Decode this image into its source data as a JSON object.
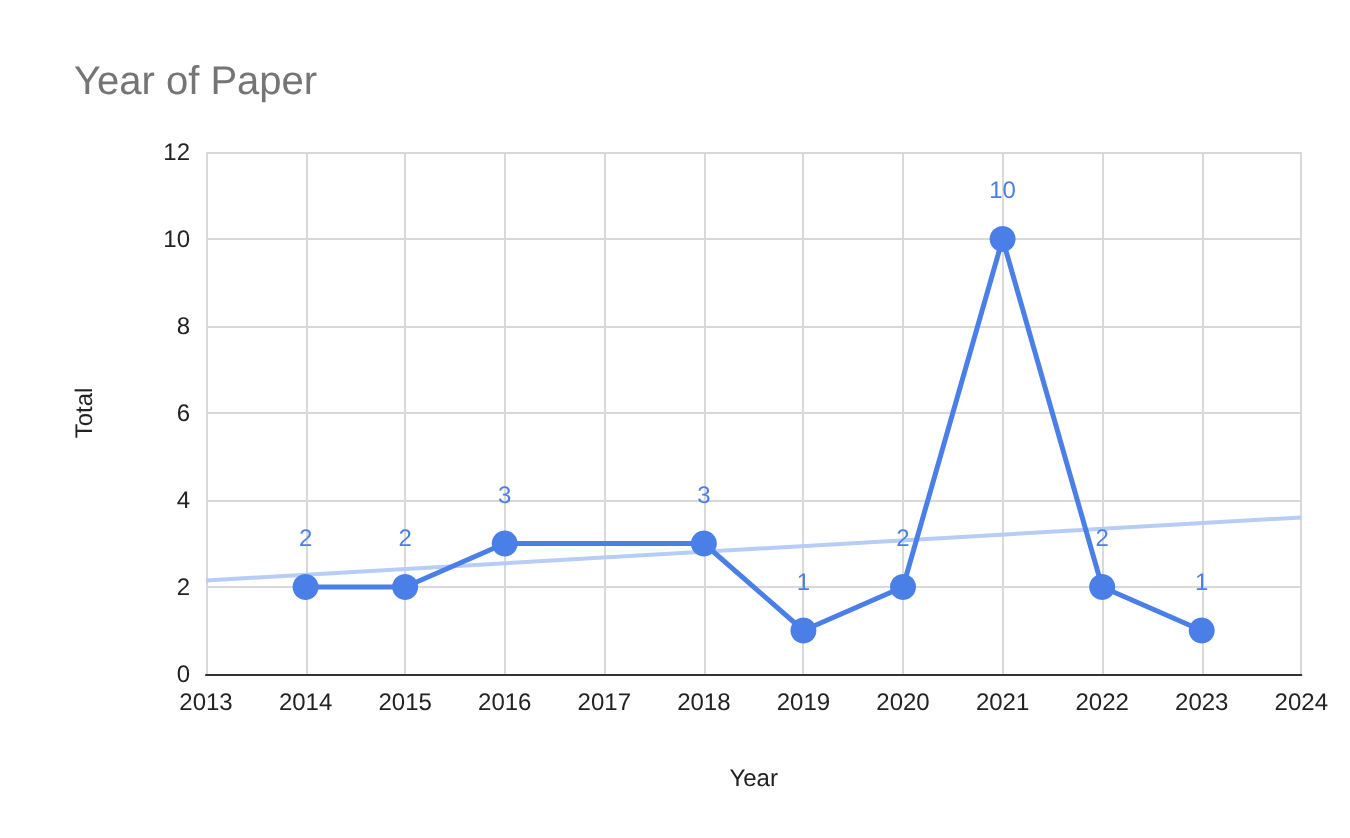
{
  "chart_data": {
    "type": "line",
    "title": "Year of Paper",
    "xlabel": "Year",
    "ylabel": "Total",
    "x": [
      2014,
      2015,
      2016,
      2018,
      2019,
      2020,
      2021,
      2022,
      2023
    ],
    "series": [
      {
        "color": "#4a7fe8",
        "marker": "circle",
        "values": [
          2,
          2,
          3,
          3,
          1,
          2,
          10,
          2,
          1
        ],
        "value_labels": [
          "2",
          "2",
          "3",
          "3",
          "1",
          "2",
          "10",
          "2",
          "1"
        ]
      },
      {
        "type": "line",
        "color": "#b7cdf5",
        "marker": "none",
        "x": [
          2013,
          2024
        ],
        "values": [
          2.15,
          3.6
        ]
      }
    ],
    "xlim": [
      2013,
      2024
    ],
    "xticks": [
      2013,
      2014,
      2015,
      2016,
      2017,
      2018,
      2019,
      2020,
      2021,
      2022,
      2023,
      2024
    ],
    "ylim": [
      0,
      12
    ],
    "yticks": [
      0,
      2,
      4,
      6,
      8,
      10,
      12
    ],
    "grid": true
  }
}
